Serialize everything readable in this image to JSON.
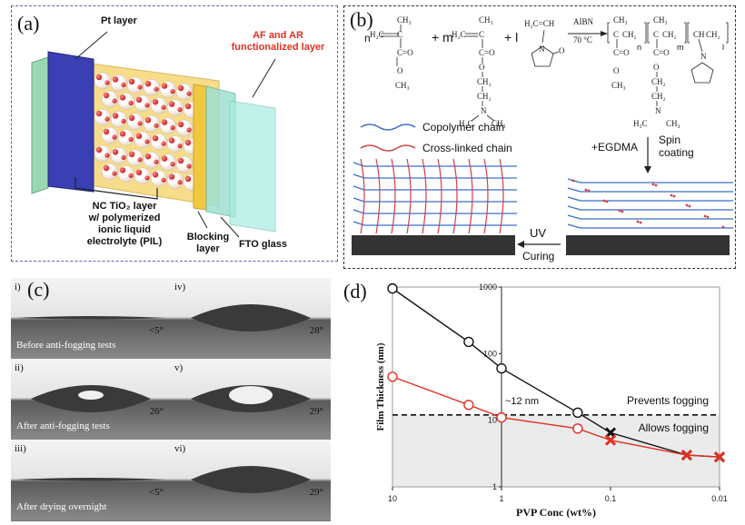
{
  "panel_a": {
    "label": "(a)",
    "pt_layer": "Pt layer",
    "af_ar_line1": "AF and AR",
    "af_ar_line2": "functionalized layer",
    "nc_line1": "NC TiO₂ layer",
    "nc_line2": "w/ polymerized",
    "nc_line3": "ionic liquid",
    "nc_line4": "electrolyte (PIL)",
    "blocking_line1": "Blocking",
    "blocking_line2": "layer",
    "fto": "FTO glass",
    "colors": {
      "af_label": "#e03020",
      "border": "#6a5bb0",
      "spheres": "#d8262a",
      "blue": "#3a3fb4",
      "green": "#8fd3c7"
    }
  },
  "panel_b": {
    "label": "(b)",
    "monomer_n": "n",
    "plus_m": "+ m",
    "plus_l": "+ l",
    "aibn": "AIBN",
    "temp": "70 °C",
    "sub_n": "n",
    "sub_m": "m",
    "sub_l": "l",
    "copolymer": "Copolymer chain",
    "crosslinked": "Cross-linked chain",
    "egdma": "+EGDMA",
    "spin1": "Spin",
    "spin2": "coating",
    "uv": "UV",
    "curing": "Curing",
    "colors": {
      "copolymer": "#3a6fc4",
      "crosslinked": "#d04048"
    }
  },
  "panel_c": {
    "label": "(c)",
    "cells": [
      {
        "roman": "i)",
        "caption": "Before anti-fogging tests",
        "angle": "<5°"
      },
      {
        "roman": "iv)",
        "caption": "",
        "angle": "28°"
      },
      {
        "roman": "ii)",
        "caption": "After anti-fogging tests",
        "angle": "26°"
      },
      {
        "roman": "v)",
        "caption": "",
        "angle": "29°"
      },
      {
        "roman": "iii)",
        "caption": "After drying overnight",
        "angle": "<5°"
      },
      {
        "roman": "vi)",
        "caption": "",
        "angle": "29°"
      }
    ]
  },
  "chart_data": {
    "type": "line",
    "label": "(d)",
    "xlabel": "PVP Conc (wt%)",
    "ylabel": "Film Thickness (nm)",
    "x_scale": "log",
    "x_reversed": true,
    "y_scale": "log",
    "xlim": [
      10,
      0.01
    ],
    "ylim": [
      1,
      1000
    ],
    "xticks": [
      "10",
      "1",
      "0.1",
      "0.01"
    ],
    "yticks": [
      "1",
      "10",
      "100",
      "1000"
    ],
    "threshold_y": 12,
    "threshold_label": "~12 nm",
    "region_above": "Prevents fogging",
    "region_below": "Allows fogging",
    "series": [
      {
        "color": "#111111",
        "x": [
          10,
          2,
          1,
          0.2,
          0.1,
          0.02,
          0.01
        ],
        "y": [
          950,
          150,
          60,
          13,
          6.5,
          3,
          2.8
        ]
      },
      {
        "color": "#e03020",
        "x": [
          10,
          2,
          1,
          0.2,
          0.1,
          0.02,
          0.01
        ],
        "y": [
          45,
          17,
          11,
          7.5,
          5,
          3,
          2.8
        ]
      }
    ],
    "colors": {
      "shade": "#ebebeb",
      "threshold": "#111111"
    }
  }
}
